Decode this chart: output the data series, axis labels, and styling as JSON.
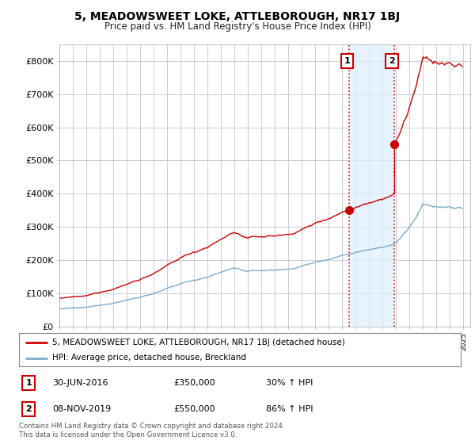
{
  "title": "5, MEADOWSWEET LOKE, ATTLEBOROUGH, NR17 1BJ",
  "subtitle": "Price paid vs. HM Land Registry's House Price Index (HPI)",
  "legend_line1": "5, MEADOWSWEET LOKE, ATTLEBOROUGH, NR17 1BJ (detached house)",
  "legend_line2": "HPI: Average price, detached house, Breckland",
  "footnote": "Contains HM Land Registry data © Crown copyright and database right 2024.\nThis data is licensed under the Open Government Licence v3.0.",
  "transaction1_label": "1",
  "transaction1_date": "30-JUN-2016",
  "transaction1_price": "£350,000",
  "transaction1_hpi": "30% ↑ HPI",
  "transaction2_label": "2",
  "transaction2_date": "08-NOV-2019",
  "transaction2_price": "£550,000",
  "transaction2_hpi": "86% ↑ HPI",
  "red_color": "#cc0000",
  "blue_color": "#7aabcc",
  "shade_color": "#ddeeff",
  "grid_color": "#cccccc",
  "bg_color": "#ffffff",
  "ylim": [
    0,
    850000
  ],
  "yticks": [
    0,
    100000,
    200000,
    300000,
    400000,
    500000,
    600000,
    700000,
    800000
  ],
  "ytick_labels": [
    "£0",
    "£100K",
    "£200K",
    "£300K",
    "£400K",
    "£500K",
    "£600K",
    "£700K",
    "£800K"
  ],
  "xlim_start": 1995.0,
  "xlim_end": 2025.5,
  "t1_x": 2016.5,
  "t1_y": 350000,
  "t2_x": 2019.836,
  "t2_y": 550000
}
